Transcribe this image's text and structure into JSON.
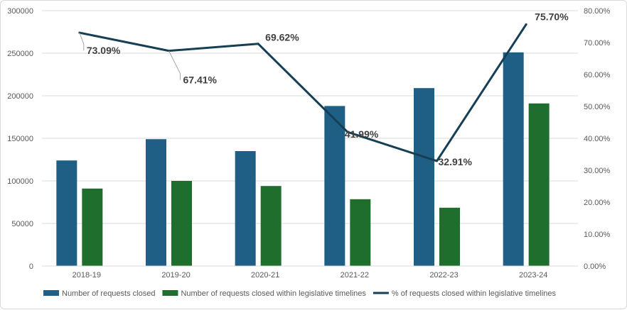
{
  "chart_data": {
    "type": "bar",
    "title": "",
    "categories": [
      "2018-19",
      "2019-20",
      "2020-21",
      "2021-22",
      "2022-23",
      "2023-24"
    ],
    "series": [
      {
        "name": "Number of requests closed",
        "type": "bar",
        "axis": "left",
        "color": "#1f5f86",
        "values": [
          124000,
          149000,
          135000,
          188000,
          209000,
          251000
        ]
      },
      {
        "name": "Number of requests closed within legislative timelines",
        "type": "bar",
        "axis": "left",
        "color": "#1f6e2e",
        "values": [
          91000,
          100000,
          94000,
          78500,
          68500,
          191000
        ]
      },
      {
        "name": "% of requests closed within legislative timelines",
        "type": "line",
        "axis": "right",
        "color": "#163f55",
        "values": [
          73.09,
          67.41,
          69.62,
          41.99,
          32.91,
          75.7
        ],
        "labels": [
          "73.09%",
          "67.41%",
          "69.62%",
          "41.99%",
          "32.91%",
          "75.70%"
        ]
      }
    ],
    "y_left": {
      "min": 0,
      "max": 300000,
      "step": 50000,
      "tick_labels": [
        "0",
        "50000",
        "100000",
        "150000",
        "200000",
        "250000",
        "300000"
      ]
    },
    "y_right": {
      "min": 0,
      "max": 80,
      "step": 10,
      "tick_labels": [
        "0.00%",
        "10.00%",
        "20.00%",
        "30.00%",
        "40.00%",
        "50.00%",
        "60.00%",
        "70.00%",
        "80.00%"
      ]
    },
    "grid": true,
    "legend_position": "bottom"
  }
}
